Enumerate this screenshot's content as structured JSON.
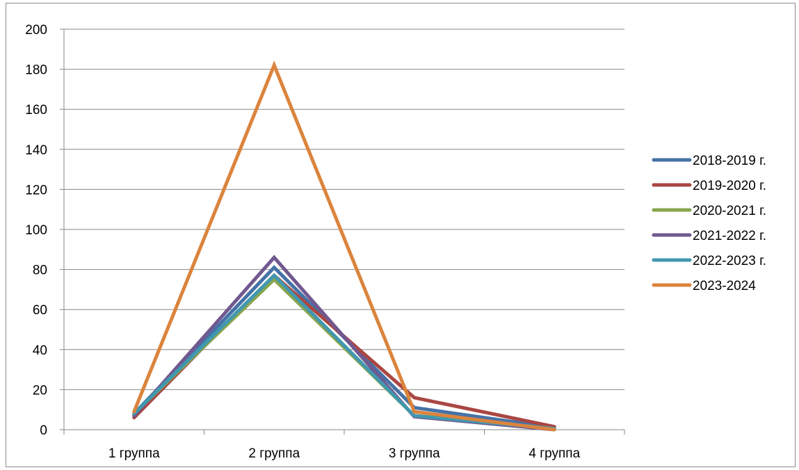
{
  "chart_data": {
    "type": "line",
    "title": "",
    "xlabel": "",
    "ylabel": "",
    "categories": [
      "1 группа",
      "2 группа",
      "3 группа",
      "4 группа"
    ],
    "ylim": [
      0,
      200
    ],
    "y_ticks": [
      "0",
      "20",
      "40",
      "60",
      "80",
      "100",
      "120",
      "140",
      "160",
      "180",
      "200"
    ],
    "grid": "horizontal",
    "legend": "right",
    "series": [
      {
        "name": "2018-2019 г.",
        "color": "#4572a7",
        "values": [
          8,
          81,
          11,
          1
        ]
      },
      {
        "name": "2019-2020 г.",
        "color": "#aa4643",
        "values": [
          6,
          77,
          16,
          1.5
        ]
      },
      {
        "name": "2020-2021 г.",
        "color": "#89a54e",
        "values": [
          8,
          75,
          7,
          0.5
        ]
      },
      {
        "name": "2021-2022 г.",
        "color": "#71588f",
        "values": [
          7,
          86,
          6.5,
          0
        ]
      },
      {
        "name": "2022-2023 г.",
        "color": "#4198af",
        "values": [
          8,
          77,
          7,
          0.5
        ]
      },
      {
        "name": "2023-2024",
        "color": "#db843d",
        "values": [
          9,
          182,
          9,
          0
        ]
      }
    ]
  }
}
